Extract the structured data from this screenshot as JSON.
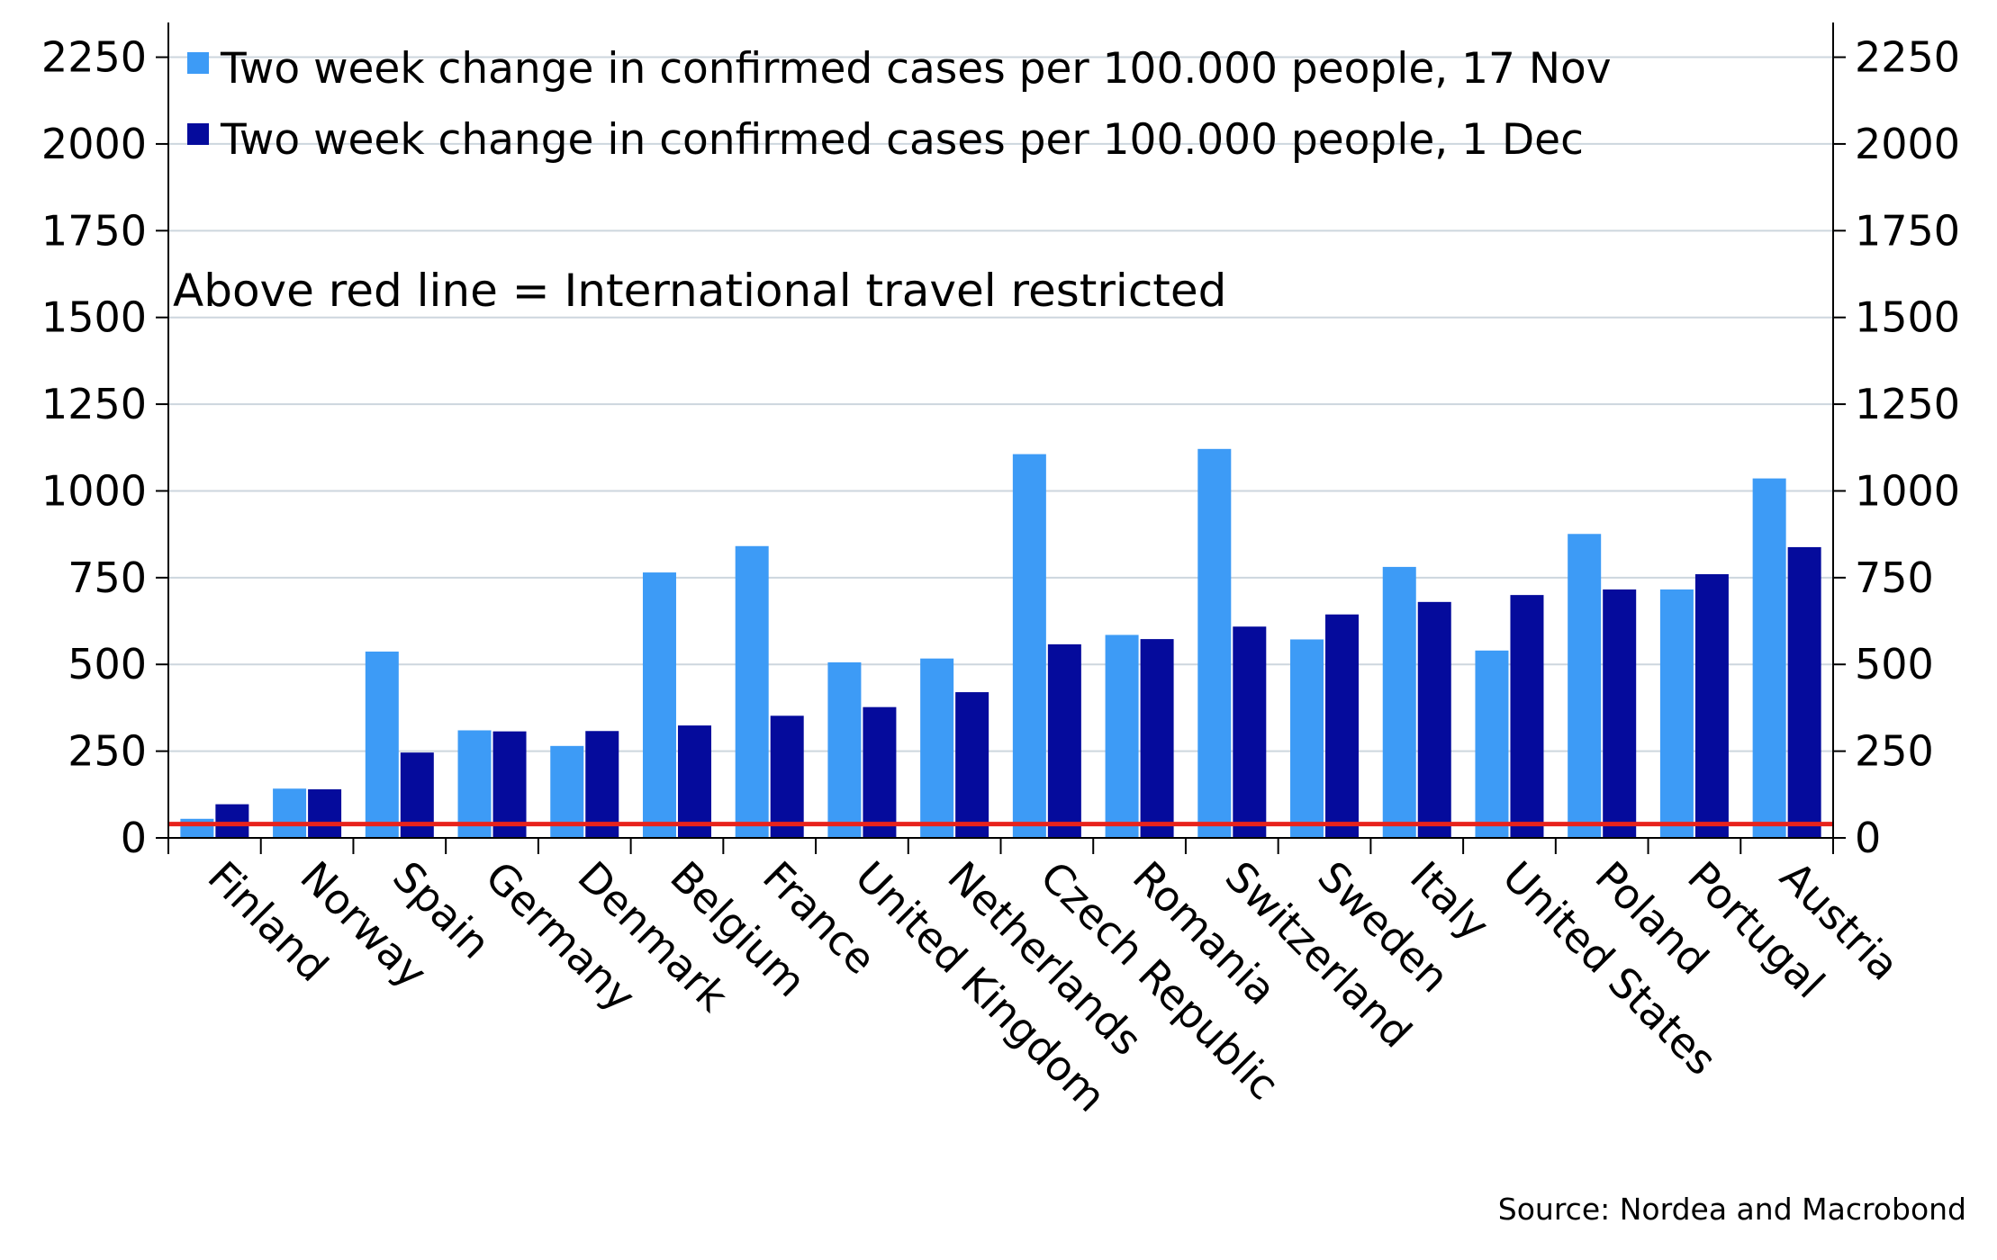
{
  "chart_data": {
    "type": "bar",
    "categories": [
      "Finland",
      "Norway",
      "Spain",
      "Germany",
      "Denmark",
      "Belgium",
      "France",
      "United Kingdom",
      "Netherlands",
      "Czech Republic",
      "Romania",
      "Switzerland",
      "Sweden",
      "Italy",
      "United States",
      "Poland",
      "Portugal",
      "Austria"
    ],
    "series": [
      {
        "name": "Two week change in confirmed cases per 100.000 people, 17 Nov",
        "color": "#3d9bf6",
        "values": [
          55,
          142,
          537,
          310,
          265,
          765,
          841,
          506,
          517,
          1106,
          585,
          1121,
          572,
          781,
          540,
          876,
          716,
          1036
        ]
      },
      {
        "name": "Two week change in confirmed cases per 100.000 people, 1 Dec",
        "color": "#050b9c",
        "values": [
          97,
          140,
          246,
          307,
          308,
          324,
          352,
          377,
          420,
          558,
          573,
          609,
          644,
          680,
          700,
          716,
          760,
          838
        ]
      }
    ],
    "threshold": {
      "value": 40,
      "color": "#e8231c"
    },
    "y_ticks": [
      "0",
      "250",
      "500",
      "750",
      "1000",
      "1250",
      "1500",
      "1750",
      "2000",
      "2250"
    ],
    "ylim": [
      0,
      2350
    ],
    "annotation": "Above red line = International travel restricted",
    "grid": true,
    "legend_position": "top-left",
    "source": "Source: Nordea and Macrobond",
    "grid_color": "#cdd6de"
  }
}
